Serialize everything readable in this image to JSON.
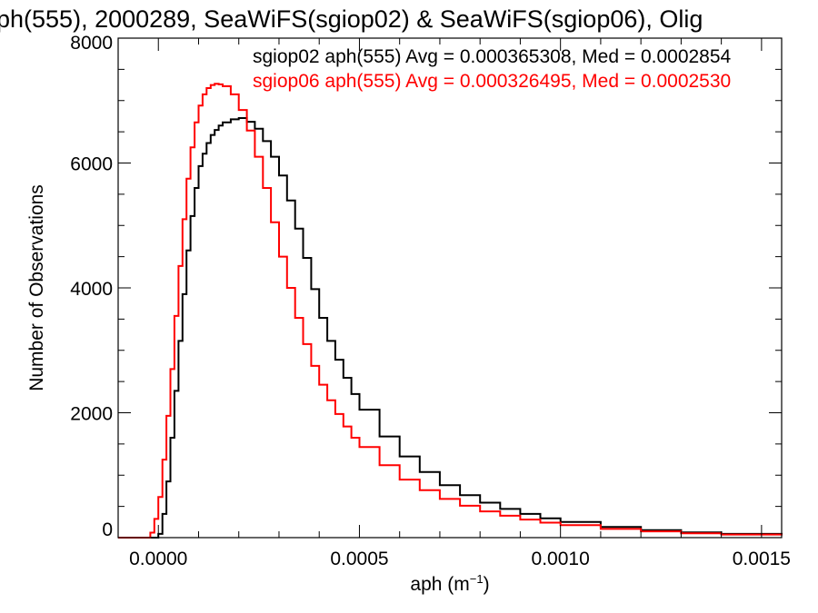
{
  "chart_data": {
    "type": "line",
    "title": "ph(555), 2000289, SeaWiFS(sgiop02) & SeaWiFS(sgiop06), Olig",
    "xlabel_main": "aph (m",
    "xlabel_sup": "−1",
    "xlabel_close": ")",
    "ylabel": "Number of Observations",
    "xlim": [
      -0.0001,
      0.00155
    ],
    "ylim": [
      0,
      8000
    ],
    "xticks": [
      0.0,
      0.0005,
      0.001,
      0.0015
    ],
    "xtick_labels": [
      "0.0000",
      "0.0005",
      "0.0010",
      "0.0015"
    ],
    "yticks": [
      0,
      2000,
      4000,
      6000,
      8000
    ],
    "ytick_labels": [
      "0",
      "2000",
      "4000",
      "6000",
      "8000"
    ],
    "grid": false,
    "legend_position": "top-right",
    "annotations": [
      {
        "text": "sgiop02 aph(555) Avg = 0.000365308, Med = 0.0002854",
        "color": "#000000"
      },
      {
        "text": "sgiop06 aph(555) Avg = 0.000326495, Med = 0.0002530",
        "color": "#ff0000"
      }
    ],
    "series": [
      {
        "label": "sgiop02",
        "color": "#000000",
        "points": [
          [
            -0.0001,
            0
          ],
          [
            -2e-05,
            0
          ],
          [
            0.0,
            60
          ],
          [
            1e-05,
            380
          ],
          [
            2e-05,
            900
          ],
          [
            3e-05,
            1600
          ],
          [
            4e-05,
            2350
          ],
          [
            5e-05,
            3150
          ],
          [
            6e-05,
            3900
          ],
          [
            7e-05,
            4600
          ],
          [
            8e-05,
            5150
          ],
          [
            9e-05,
            5600
          ],
          [
            0.0001,
            5950
          ],
          [
            0.00011,
            6150
          ],
          [
            0.00012,
            6320
          ],
          [
            0.00013,
            6450
          ],
          [
            0.00014,
            6530
          ],
          [
            0.00015,
            6600
          ],
          [
            0.00016,
            6650
          ],
          [
            0.00018,
            6700
          ],
          [
            0.0002,
            6720
          ],
          [
            0.00022,
            6660
          ],
          [
            0.00024,
            6550
          ],
          [
            0.00026,
            6350
          ],
          [
            0.00028,
            6100
          ],
          [
            0.0003,
            5800
          ],
          [
            0.00032,
            5400
          ],
          [
            0.00034,
            4950
          ],
          [
            0.00036,
            4480
          ],
          [
            0.00038,
            3980
          ],
          [
            0.0004,
            3520
          ],
          [
            0.00042,
            3150
          ],
          [
            0.00044,
            2850
          ],
          [
            0.00046,
            2560
          ],
          [
            0.00048,
            2300
          ],
          [
            0.0005,
            2050
          ],
          [
            0.00055,
            1620
          ],
          [
            0.0006,
            1300
          ],
          [
            0.00065,
            1050
          ],
          [
            0.0007,
            840
          ],
          [
            0.00075,
            680
          ],
          [
            0.0008,
            560
          ],
          [
            0.00085,
            460
          ],
          [
            0.0009,
            380
          ],
          [
            0.00095,
            310
          ],
          [
            0.001,
            250
          ],
          [
            0.0011,
            170
          ],
          [
            0.0012,
            120
          ],
          [
            0.0013,
            85
          ],
          [
            0.0014,
            60
          ],
          [
            0.00155,
            40
          ]
        ]
      },
      {
        "label": "sgiop06",
        "color": "#ff0000",
        "points": [
          [
            -0.0001,
            0
          ],
          [
            -4e-05,
            0
          ],
          [
            -2e-05,
            80
          ],
          [
            -1e-05,
            300
          ],
          [
            0.0,
            650
          ],
          [
            1e-05,
            1250
          ],
          [
            2e-05,
            1950
          ],
          [
            3e-05,
            2700
          ],
          [
            4e-05,
            3550
          ],
          [
            5e-05,
            4350
          ],
          [
            6e-05,
            5100
          ],
          [
            7e-05,
            5750
          ],
          [
            8e-05,
            6250
          ],
          [
            9e-05,
            6650
          ],
          [
            0.0001,
            6920
          ],
          [
            0.00011,
            7100
          ],
          [
            0.00012,
            7200
          ],
          [
            0.00013,
            7250
          ],
          [
            0.00014,
            7270
          ],
          [
            0.00015,
            7260
          ],
          [
            0.00016,
            7230
          ],
          [
            0.00018,
            7100
          ],
          [
            0.0002,
            6850
          ],
          [
            0.00022,
            6520
          ],
          [
            0.00024,
            6100
          ],
          [
            0.00026,
            5600
          ],
          [
            0.00028,
            5050
          ],
          [
            0.0003,
            4500
          ],
          [
            0.00032,
            4000
          ],
          [
            0.00034,
            3520
          ],
          [
            0.00036,
            3100
          ],
          [
            0.00038,
            2750
          ],
          [
            0.0004,
            2450
          ],
          [
            0.00042,
            2200
          ],
          [
            0.00044,
            1980
          ],
          [
            0.00046,
            1780
          ],
          [
            0.00048,
            1600
          ],
          [
            0.0005,
            1450
          ],
          [
            0.00055,
            1160
          ],
          [
            0.0006,
            930
          ],
          [
            0.00065,
            760
          ],
          [
            0.0007,
            620
          ],
          [
            0.00075,
            510
          ],
          [
            0.0008,
            420
          ],
          [
            0.00085,
            350
          ],
          [
            0.0009,
            290
          ],
          [
            0.00095,
            240
          ],
          [
            0.001,
            200
          ],
          [
            0.0011,
            140
          ],
          [
            0.0012,
            100
          ],
          [
            0.0013,
            70
          ],
          [
            0.0014,
            50
          ],
          [
            0.00155,
            35
          ]
        ]
      }
    ]
  }
}
